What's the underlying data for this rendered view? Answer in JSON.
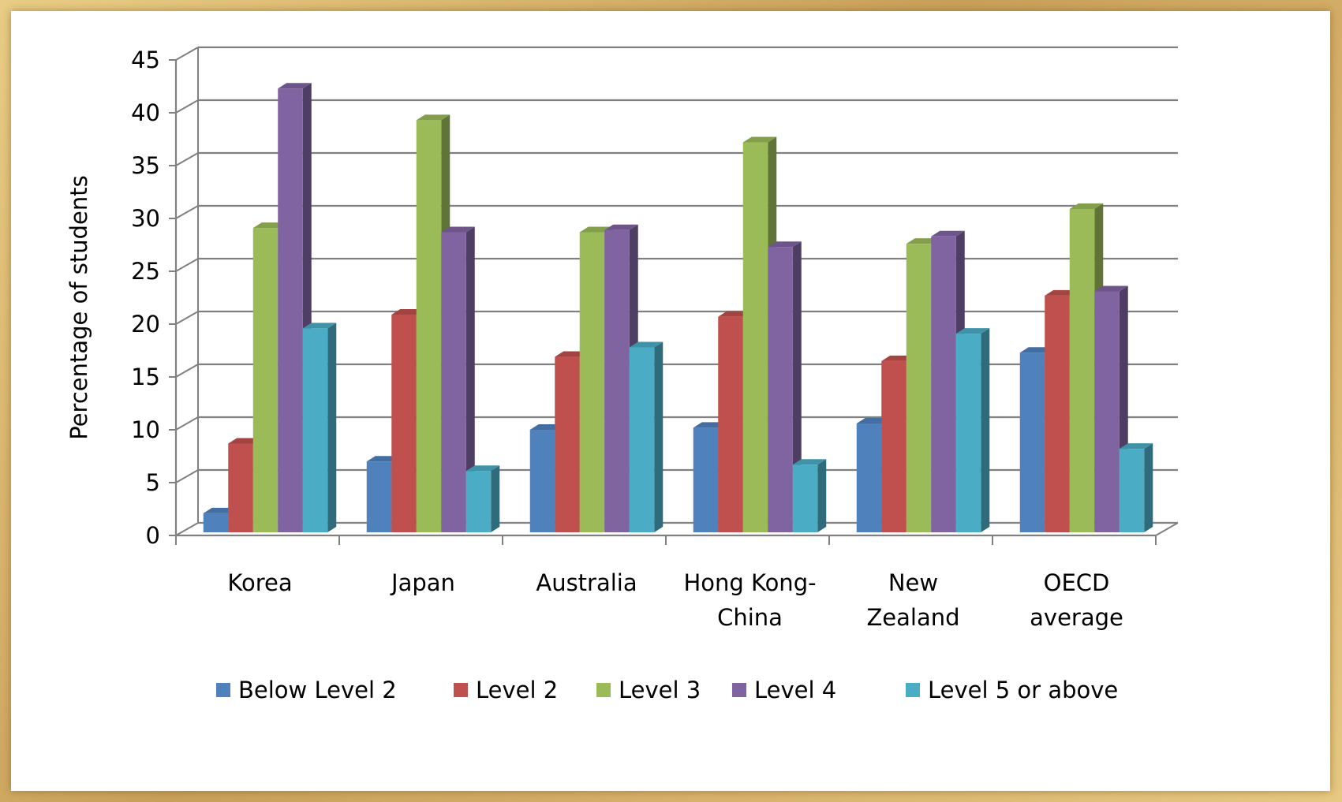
{
  "chart_data": {
    "type": "bar",
    "ylabel": "Percentage of students",
    "ylim": [
      0,
      45
    ],
    "yticks": [
      "0",
      "5",
      "10",
      "15",
      "20",
      "25",
      "30",
      "35",
      "40",
      "45"
    ],
    "grid": true,
    "legend_position": "bottom",
    "categories": [
      [
        "Korea"
      ],
      [
        "Japan"
      ],
      [
        "Australia"
      ],
      [
        "Hong Kong-",
        "China"
      ],
      [
        "New",
        "Zealand"
      ],
      [
        "OECD",
        "average"
      ]
    ],
    "series": [
      {
        "name": "Below Level 2",
        "color": "#4f81bd",
        "values": [
          1.8,
          6.7,
          9.7,
          9.9,
          10.3,
          17.0
        ]
      },
      {
        "name": "Level 2",
        "color": "#c0504d",
        "values": [
          8.4,
          20.6,
          16.6,
          20.4,
          16.2,
          22.4
        ]
      },
      {
        "name": "Level 3",
        "color": "#9bbb59",
        "values": [
          28.8,
          39.0,
          28.4,
          36.9,
          27.3,
          30.6
        ]
      },
      {
        "name": "Level 4",
        "color": "#8064a2",
        "values": [
          42.0,
          28.4,
          28.6,
          27.0,
          28.0,
          22.8
        ]
      },
      {
        "name": "Level 5 or above",
        "color": "#4bacc6",
        "values": [
          19.3,
          5.8,
          17.5,
          6.4,
          18.8,
          7.9
        ]
      }
    ]
  }
}
